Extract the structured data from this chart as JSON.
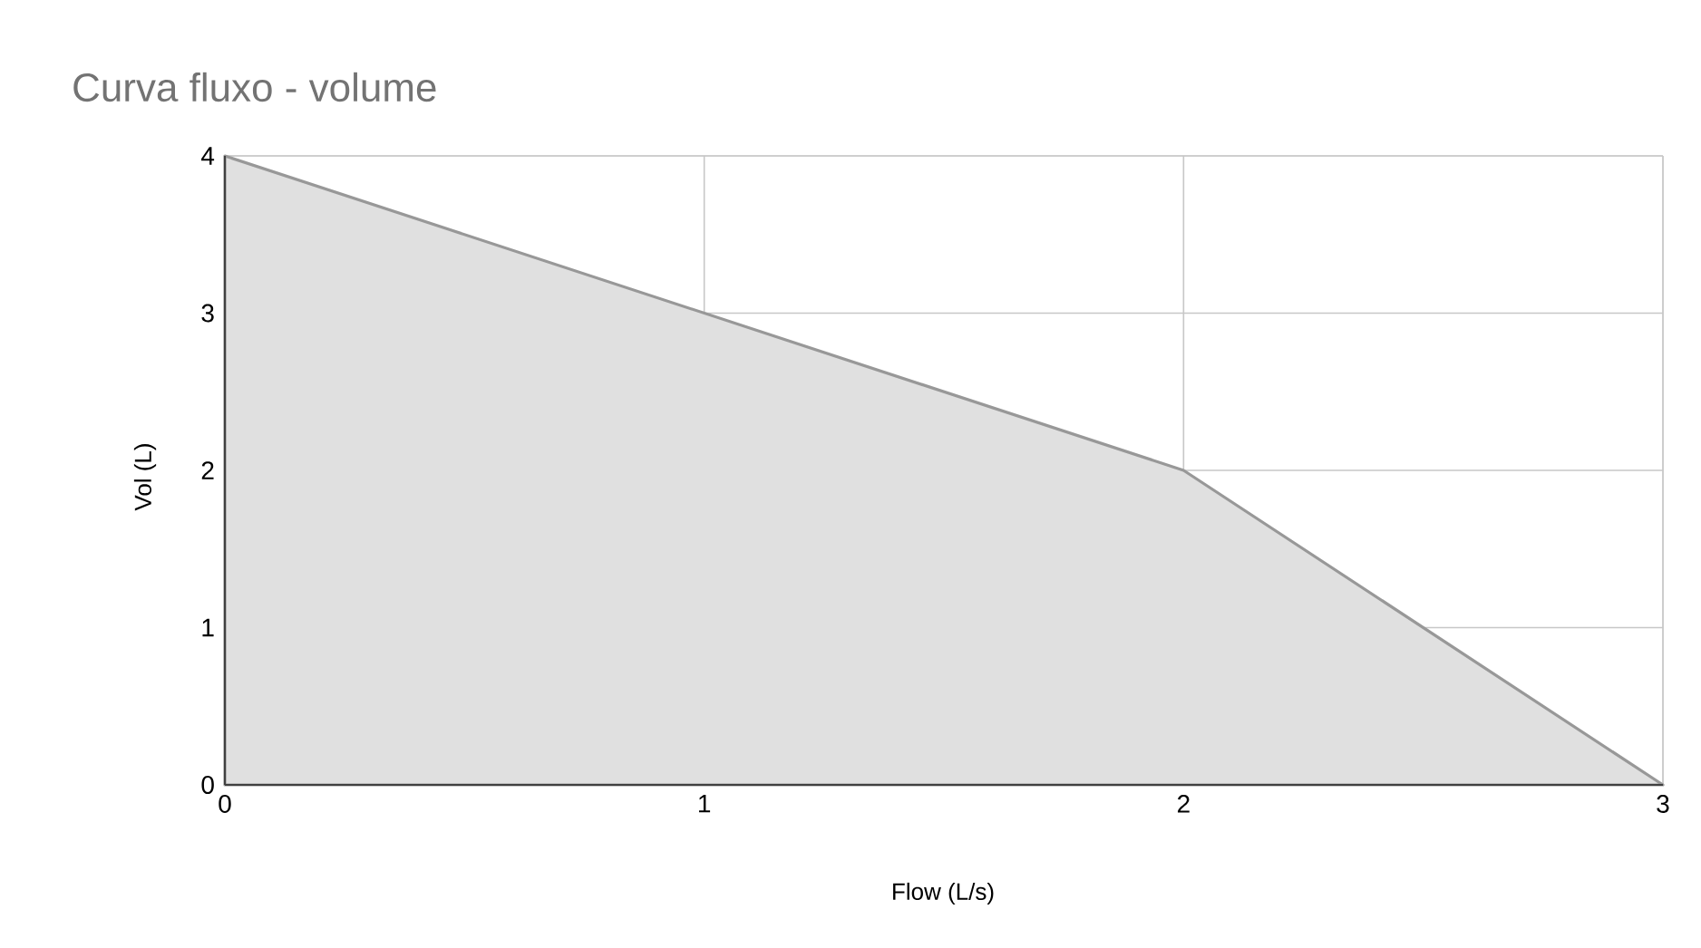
{
  "chart_data": {
    "type": "area",
    "title": "Curva fluxo - volume",
    "xlabel": "Flow (L/s)",
    "ylabel": "Vol (L)",
    "x": [
      0,
      1,
      2,
      3
    ],
    "series": [
      {
        "color": "#e0e0e0",
        "values": [
          4,
          3,
          2,
          0
        ]
      }
    ],
    "xlim": [
      0,
      3
    ],
    "ylim": [
      0,
      4
    ],
    "xticks": [
      0,
      1,
      2,
      3
    ],
    "yticks": [
      0,
      1,
      2,
      3,
      4
    ],
    "grid": true
  }
}
